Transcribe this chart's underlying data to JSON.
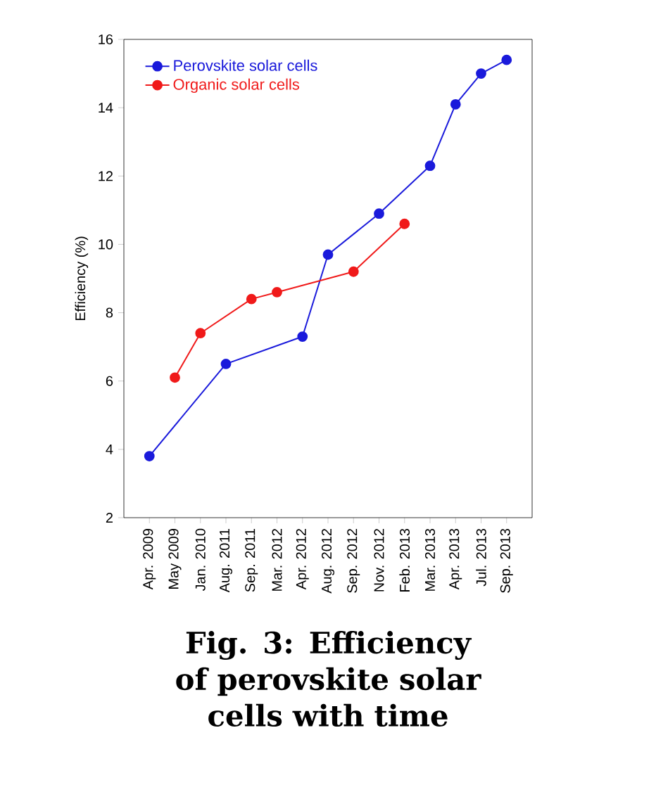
{
  "chart_data": {
    "type": "line",
    "title": "Fig. 3: Efficiency of perovskite solar cells with time",
    "ylabel": "Efficiency (%)",
    "categories": [
      "Apr. 2009",
      "May 2009",
      "Jan. 2010",
      "Aug. 2011",
      "Sep. 2011",
      "Mar. 2012",
      "Apr. 2012",
      "Aug. 2012",
      "Sep. 2012",
      "Nov. 2012",
      "Feb. 2013",
      "Mar. 2013",
      "Apr. 2013",
      "Jul. 2013",
      "Sep. 2013"
    ],
    "series": [
      {
        "name": "Perovskite solar cells",
        "color": "#1a1adb",
        "values": [
          3.8,
          null,
          null,
          6.5,
          null,
          null,
          7.3,
          9.7,
          null,
          10.9,
          null,
          12.3,
          14.1,
          15.0,
          15.4
        ]
      },
      {
        "name": "Organic solar cells",
        "color": "#f01a1a",
        "values": [
          null,
          6.1,
          7.4,
          null,
          8.4,
          8.6,
          null,
          null,
          9.2,
          null,
          10.6,
          null,
          null,
          null,
          null
        ]
      }
    ],
    "ylim": [
      2,
      16
    ],
    "yticks": [
      2,
      4,
      6,
      8,
      10,
      12,
      14,
      16
    ],
    "legend": "top left",
    "marker": "circle",
    "line_style": "solid",
    "grid": false
  }
}
